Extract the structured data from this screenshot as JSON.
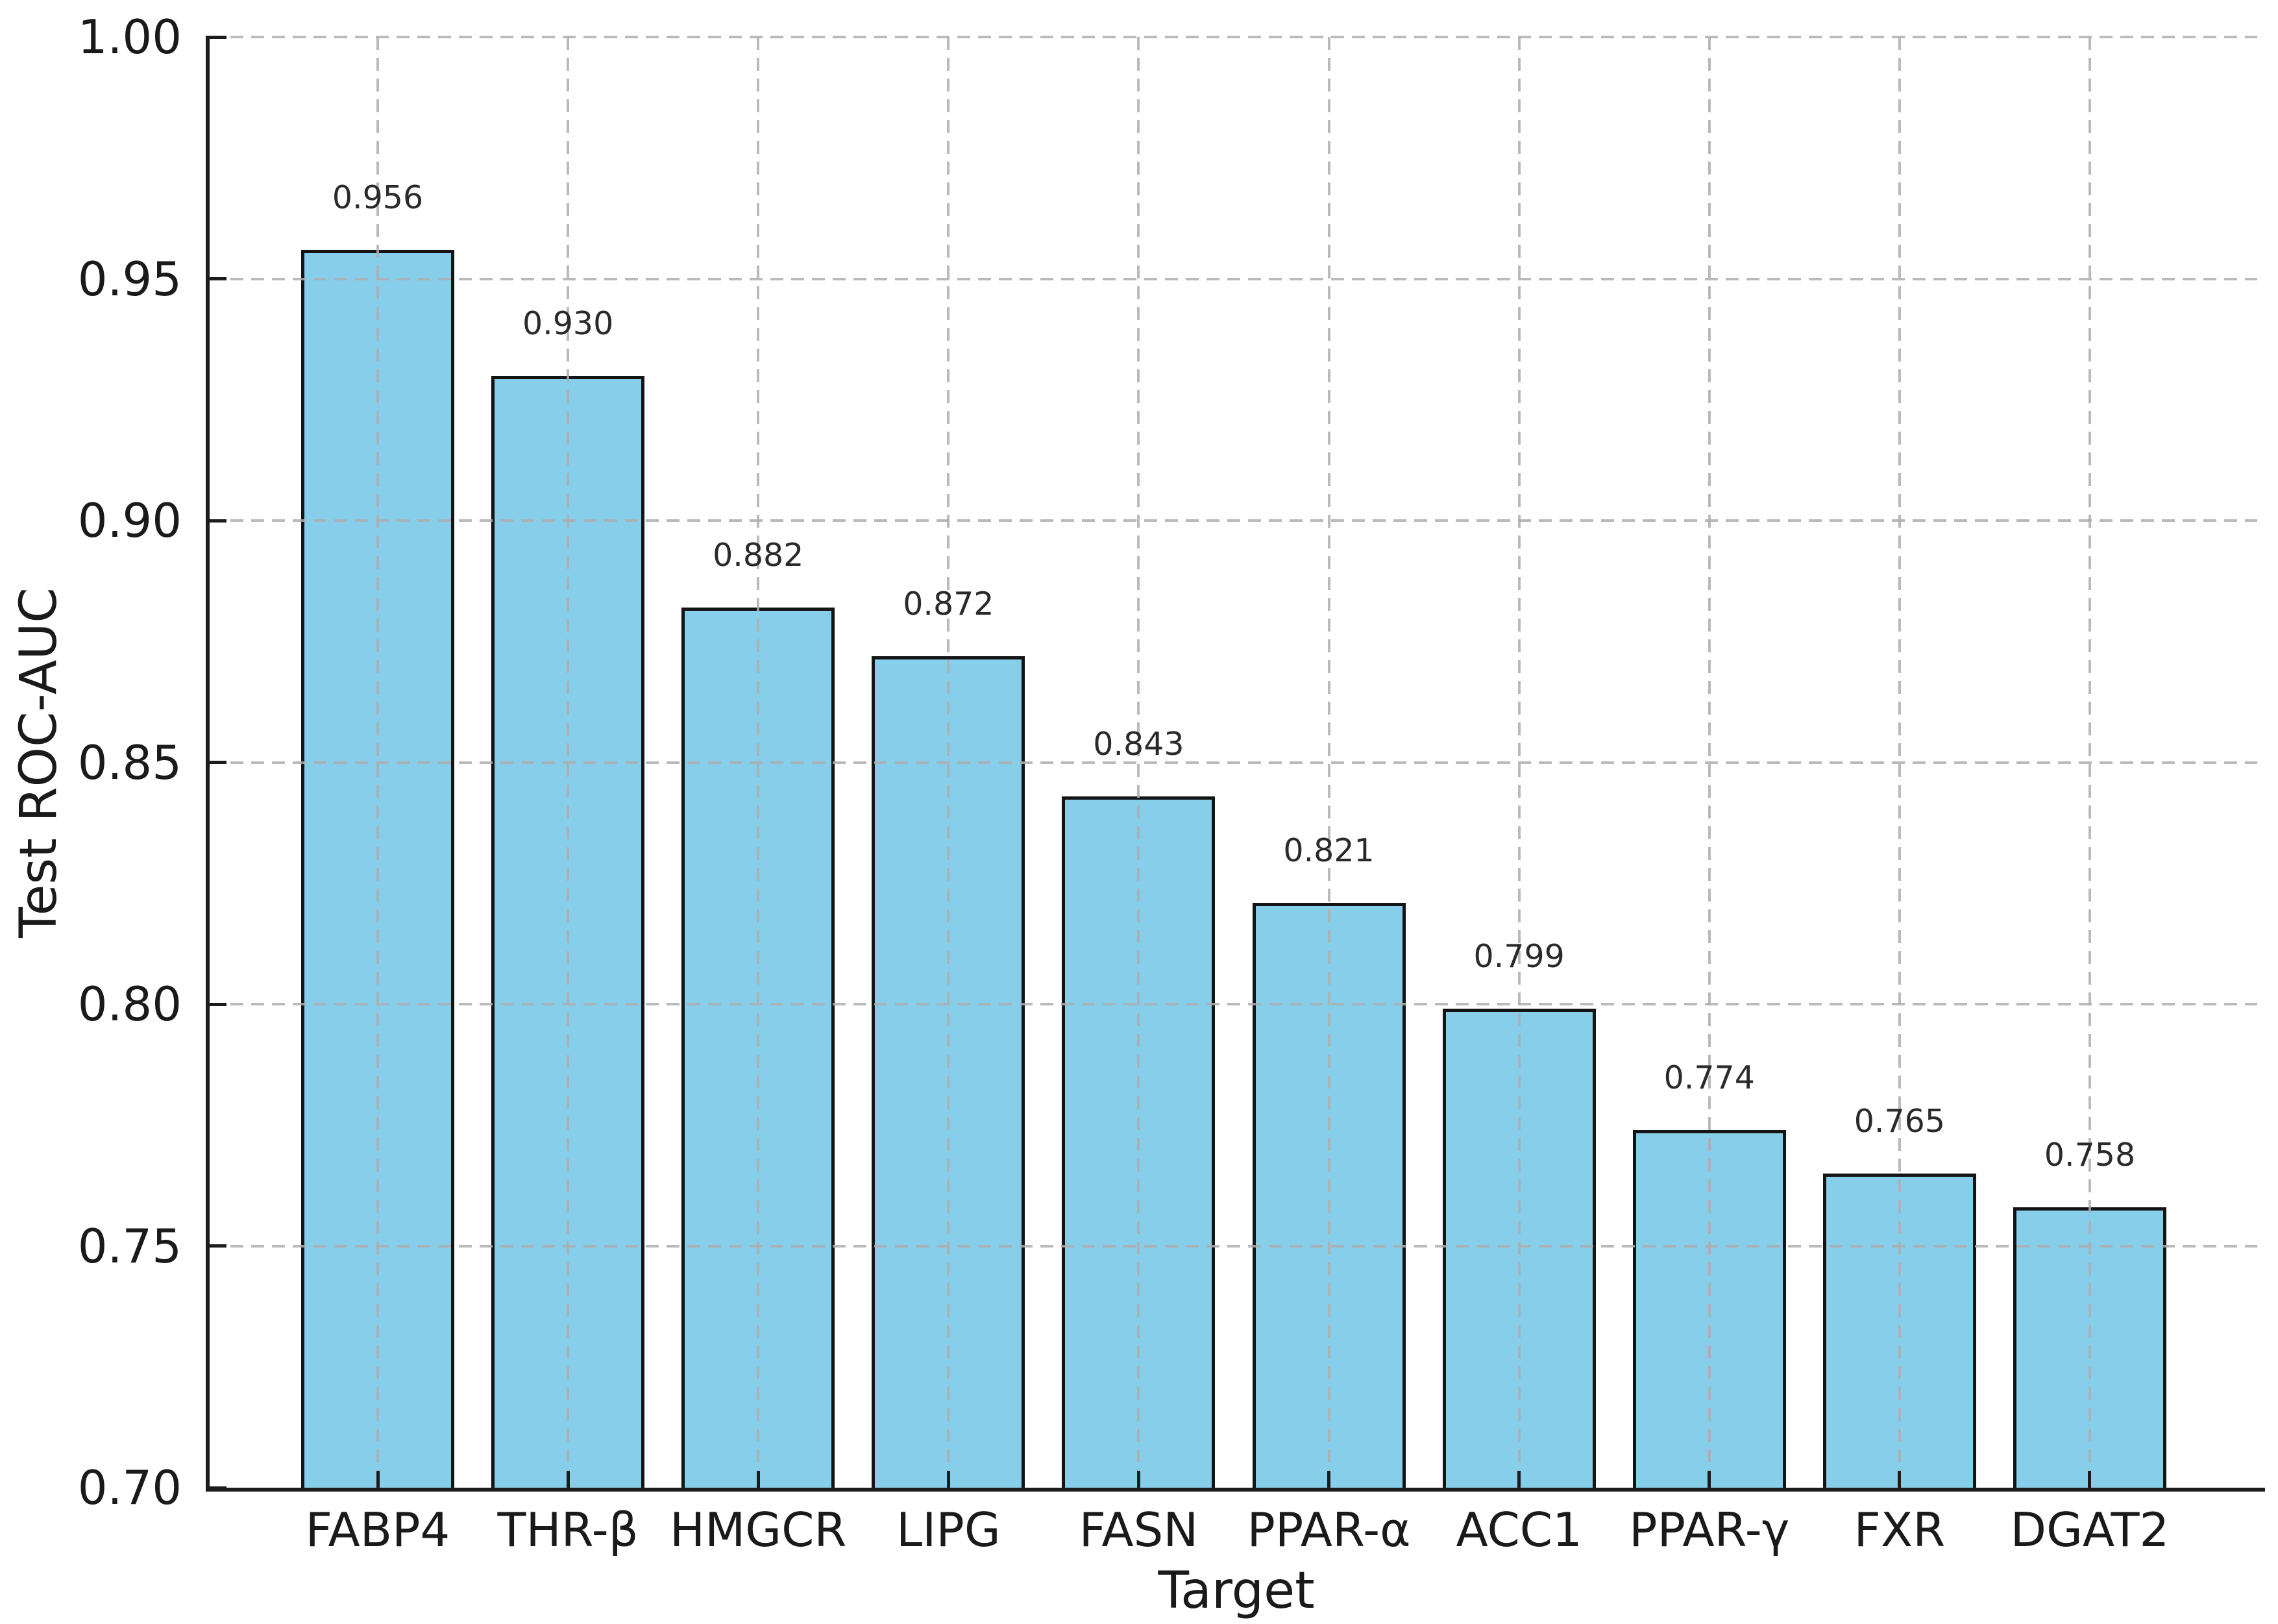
{
  "chart_data": {
    "type": "bar",
    "categories": [
      "FABP4",
      "THR-β",
      "HMGCR",
      "LIPG",
      "FASN",
      "PPAR-α",
      "ACC1",
      "PPAR-γ",
      "FXR",
      "DGAT2"
    ],
    "values": [
      0.956,
      0.93,
      0.882,
      0.872,
      0.843,
      0.821,
      0.799,
      0.774,
      0.765,
      0.758
    ],
    "value_labels": [
      "0.956",
      "0.930",
      "0.882",
      "0.872",
      "0.843",
      "0.821",
      "0.799",
      "0.774",
      "0.765",
      "0.758"
    ],
    "title": "",
    "xlabel": "Target",
    "ylabel": "Test ROC-AUC",
    "ylim": [
      0.7,
      1.0
    ],
    "yticks": [
      0.7,
      0.75,
      0.8,
      0.85,
      0.9,
      0.95,
      1.0
    ],
    "ytick_labels": [
      "0.70",
      "0.75",
      "0.80",
      "0.85",
      "0.90",
      "0.95",
      "1.00"
    ],
    "legend": "none",
    "grid": "dashed x+y gridlines drawn over bars",
    "colors": {
      "bar_fill": "#87CEEB",
      "bar_edge": "#141414",
      "grid": "#aeaeae",
      "spine": "#1c1c1c",
      "text": "#1a1a1a",
      "background": "#ffffff"
    }
  }
}
